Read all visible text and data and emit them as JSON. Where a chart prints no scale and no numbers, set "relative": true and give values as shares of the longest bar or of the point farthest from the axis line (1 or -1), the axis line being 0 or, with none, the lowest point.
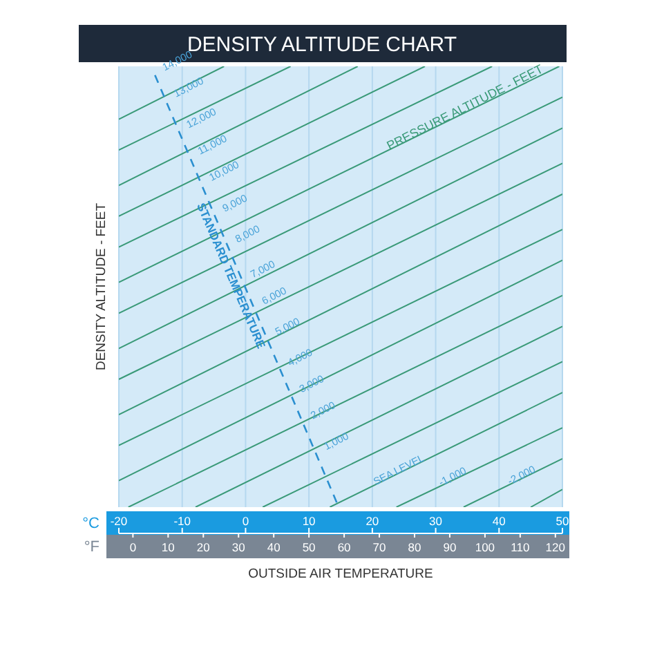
{
  "chart_data": {
    "type": "line",
    "title": "DENSITY ALTITUDE CHART",
    "xlabel": "OUTSIDE AIR TEMPERATURE",
    "ylabel": "DENSITY ALTITUDE - FEET",
    "relative": true,
    "xlim": [
      -20,
      50
    ],
    "xticks": [
      -20,
      -10,
      0,
      10,
      20,
      30,
      40,
      50
    ],
    "x2lim": [
      -4,
      122
    ],
    "x2ticks": [
      0,
      10,
      20,
      30,
      40,
      50,
      60,
      70,
      80,
      90,
      100,
      110,
      120
    ],
    "grid": "x",
    "series": [
      {
        "color": "#3a9a78",
        "x": [
          -20,
          -3.4
        ],
        "values": [
          0.88,
          1
        ]
      },
      {
        "color": "#3a9a78",
        "x": [
          -20,
          7.1
        ],
        "values": [
          0.81,
          1
        ]
      },
      {
        "color": "#3a9a78",
        "x": [
          -20,
          17.7
        ],
        "values": [
          0.73,
          1
        ]
      },
      {
        "color": "#3a9a78",
        "x": [
          -20,
          28.3
        ],
        "values": [
          0.66,
          1
        ]
      },
      {
        "color": "#3a9a78",
        "x": [
          -20,
          38.9
        ],
        "values": [
          0.59,
          1
        ]
      },
      {
        "color": "#3a9a78",
        "x": [
          -20,
          49.5
        ],
        "values": [
          0.51,
          1
        ]
      },
      {
        "color": "#3a9a78",
        "x": [
          -20,
          50
        ],
        "values": [
          0.44,
          0.93
        ]
      },
      {
        "color": "#3a9a78",
        "x": [
          -20,
          50
        ],
        "values": [
          0.36,
          0.86
        ]
      },
      {
        "color": "#3a9a78",
        "x": [
          -20,
          50
        ],
        "values": [
          0.29,
          0.78
        ]
      },
      {
        "color": "#3a9a78",
        "x": [
          -20,
          50
        ],
        "values": [
          0.21,
          0.71
        ]
      },
      {
        "color": "#3a9a78",
        "x": [
          -20,
          50
        ],
        "values": [
          0.14,
          0.63
        ]
      },
      {
        "color": "#3a9a78",
        "x": [
          -20,
          50
        ],
        "values": [
          0.06,
          0.56
        ]
      },
      {
        "color": "#3a9a78",
        "x": [
          -18.5,
          50
        ],
        "values": [
          0,
          0.48
        ]
      },
      {
        "color": "#3a9a78",
        "x": [
          -7.9,
          50
        ],
        "values": [
          0,
          0.41
        ]
      },
      {
        "color": "#3a9a78",
        "x": [
          2.7,
          50
        ],
        "values": [
          0,
          0.33
        ]
      },
      {
        "color": "#3a9a78",
        "x": [
          13.3,
          50
        ],
        "values": [
          0,
          0.26
        ]
      },
      {
        "color": "#3a9a78",
        "x": [
          23.8,
          50
        ],
        "values": [
          0,
          0.18
        ]
      },
      {
        "color": "#3a9a78",
        "x": [
          34.4,
          50
        ],
        "values": [
          0,
          0.11
        ]
      },
      {
        "color": "#3a9a78",
        "x": [
          45,
          50
        ],
        "values": [
          0,
          0.04
        ]
      },
      {
        "name": "STANDARD TEMPERATURE",
        "color": "#2a8fd0",
        "line_style": "dashed",
        "x": [
          -14.3,
          14.7
        ],
        "values": [
          0.98,
          0
        ]
      }
    ],
    "annotations": [
      "°C",
      "°F",
      {
        "text": "14,000",
        "x": -14.3,
        "y": 0.98
      },
      {
        "text": "13,000",
        "x": -12.5,
        "y": 0.92
      },
      {
        "text": "12,000",
        "x": -10.5,
        "y": 0.85
      },
      {
        "text": "11,000",
        "x": -8.7,
        "y": 0.79
      },
      {
        "text": "10,000",
        "x": -6.9,
        "y": 0.73
      },
      {
        "text": "9,000",
        "x": -4.8,
        "y": 0.66
      },
      {
        "text": "8,000",
        "x": -2.8,
        "y": 0.59
      },
      {
        "text": "7,000",
        "x": -0.4,
        "y": 0.51
      },
      {
        "text": "6,000",
        "x": 1.4,
        "y": 0.45
      },
      {
        "text": "5,000",
        "x": 3.5,
        "y": 0.38
      },
      {
        "text": "4,000",
        "x": 5.5,
        "y": 0.31
      },
      {
        "text": "3,000",
        "x": 7.3,
        "y": 0.25
      },
      {
        "text": "2,000",
        "x": 9.1,
        "y": 0.19
      },
      {
        "text": "1,000",
        "x": 11.2,
        "y": 0.12
      },
      {
        "text": "SEA LEVEL",
        "x": 19,
        "y": 0.04
      },
      {
        "text": "-1,000",
        "x": 29.3,
        "y": 0.038
      },
      {
        "text": "-2,000",
        "x": 40.2,
        "y": 0.041
      },
      {
        "text": "PRESSURE ALTITUDE - FEET",
        "x": 21.2,
        "y": 0.8
      }
    ]
  }
}
